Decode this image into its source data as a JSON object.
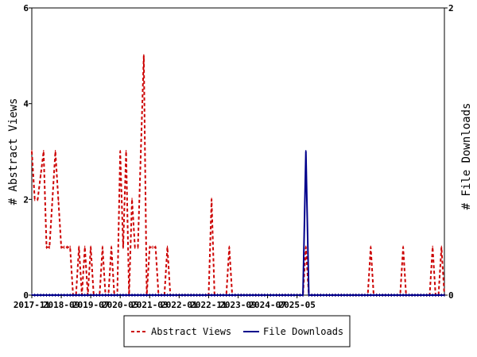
{
  "chart_data": {
    "type": "line",
    "x_tick_labels": [
      "2017-11",
      "2018-09",
      "2019-07",
      "2020-05",
      "2021-03",
      "2022-01",
      "2022-11",
      "2023-09",
      "2024-07",
      "2025-05"
    ],
    "ylabel_left": "# Abstract Views",
    "ylabel_right": "# File Downloads",
    "ylim_left": [
      0,
      6
    ],
    "yticks_left": [
      "0",
      "2",
      "4",
      "6"
    ],
    "ylim_right": [
      0,
      2
    ],
    "yticks_right": [
      "0",
      "2"
    ],
    "grid": false,
    "legend_position": "bottom",
    "start_month": "2017-11",
    "series": [
      {
        "name": "Abstract Views",
        "color": "#cc0000",
        "dash": "dashed",
        "axis": "left",
        "values": [
          3,
          2,
          2,
          2.5,
          3,
          1,
          1,
          2,
          3,
          2,
          1,
          1,
          1,
          1,
          0,
          0,
          1,
          0,
          1,
          0,
          1,
          0,
          0,
          0,
          1,
          0,
          0,
          1,
          0,
          0,
          3,
          1,
          3,
          0,
          2,
          1,
          1,
          3,
          5,
          0,
          1,
          1,
          1,
          0,
          0,
          0,
          1,
          0,
          0,
          0,
          0,
          0,
          0,
          0,
          0,
          0,
          0,
          0,
          0,
          0,
          0,
          2,
          0,
          0,
          0,
          0,
          0,
          1,
          0,
          0,
          0,
          0,
          0,
          0,
          0,
          0,
          0,
          0,
          0,
          0,
          0,
          0,
          0,
          0,
          0,
          0,
          0,
          0,
          0,
          0,
          0,
          0,
          0,
          1,
          0,
          0,
          0,
          0,
          0,
          0,
          0,
          0,
          0,
          0,
          0,
          0,
          0,
          0,
          0,
          0,
          0,
          0,
          0,
          0,
          0,
          1,
          0,
          0,
          0,
          0,
          0,
          0,
          0,
          0,
          0,
          0,
          1,
          0,
          0,
          0,
          0,
          0,
          0,
          0,
          0,
          0,
          1,
          0,
          0,
          1,
          0
        ]
      },
      {
        "name": "File Downloads",
        "color": "#00008b",
        "dash": "solid",
        "axis": "right",
        "values": [
          0,
          0,
          0,
          0,
          0,
          0,
          0,
          0,
          0,
          0,
          0,
          0,
          0,
          0,
          0,
          0,
          0,
          0,
          0,
          0,
          0,
          0,
          0,
          0,
          0,
          0,
          0,
          0,
          0,
          0,
          0,
          0,
          0,
          0,
          0,
          0,
          0,
          0,
          0,
          0,
          0,
          0,
          0,
          0,
          0,
          0,
          0,
          0,
          0,
          0,
          0,
          0,
          0,
          0,
          0,
          0,
          0,
          0,
          0,
          0,
          0,
          0,
          0,
          0,
          0,
          0,
          0,
          0,
          0,
          0,
          0,
          0,
          0,
          0,
          0,
          0,
          0,
          0,
          0,
          0,
          0,
          0,
          0,
          0,
          0,
          0,
          0,
          0,
          0,
          0,
          0,
          0,
          0,
          1,
          0,
          0,
          0,
          0,
          0,
          0,
          0,
          0,
          0,
          0,
          0,
          0,
          0,
          0,
          0,
          0,
          0,
          0,
          0,
          0,
          0,
          0,
          0,
          0,
          0,
          0,
          0,
          0,
          0,
          0,
          0,
          0,
          0,
          0,
          0,
          0,
          0,
          0,
          0,
          0,
          0,
          0,
          0,
          0,
          0,
          0,
          0
        ]
      }
    ]
  }
}
